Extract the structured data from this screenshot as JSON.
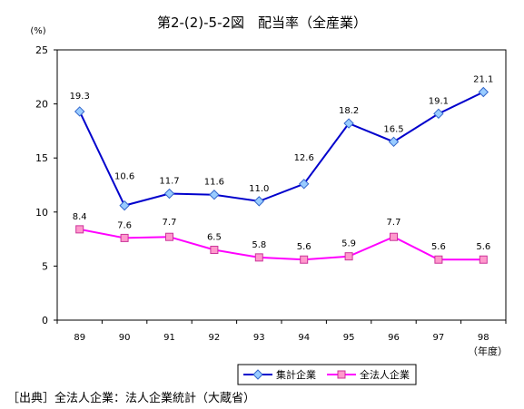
{
  "title": "第2-(2)-5-2図　配当率（全産業）",
  "source": "［出典］全法人企業：法人企業統計（大蔵省）",
  "chart_data": {
    "type": "line",
    "title": "第2-(2)-5-2図　配当率（全産業）",
    "ylabel": "(%)",
    "xlabel": "（年度）",
    "categories": [
      "89",
      "90",
      "91",
      "92",
      "93",
      "94",
      "95",
      "96",
      "97",
      "98"
    ],
    "ylim": [
      0,
      25
    ],
    "yticks": [
      0,
      5,
      10,
      15,
      20,
      25
    ],
    "grid": false,
    "legend_position": "bottom-right",
    "series": [
      {
        "name": "集計企業",
        "color": "#0000cc",
        "marker": "diamond",
        "values": [
          19.3,
          10.6,
          11.7,
          11.6,
          11.0,
          12.6,
          18.2,
          16.5,
          19.1,
          21.1
        ],
        "labels": [
          "19.3",
          "10.6",
          "11.7",
          "11.6",
          "11.0",
          "12.6",
          "18.2",
          "16.5",
          "19.1",
          "21.1"
        ]
      },
      {
        "name": "全法人企業",
        "color": "#ff00ff",
        "marker": "square",
        "values": [
          8.4,
          7.6,
          7.7,
          6.5,
          5.8,
          5.6,
          5.9,
          7.7,
          5.6,
          5.6
        ],
        "labels": [
          "8.4",
          "7.6",
          "7.7",
          "6.5",
          "5.8",
          "5.6",
          "5.9",
          "7.7",
          "5.6",
          "5.6"
        ]
      }
    ]
  }
}
